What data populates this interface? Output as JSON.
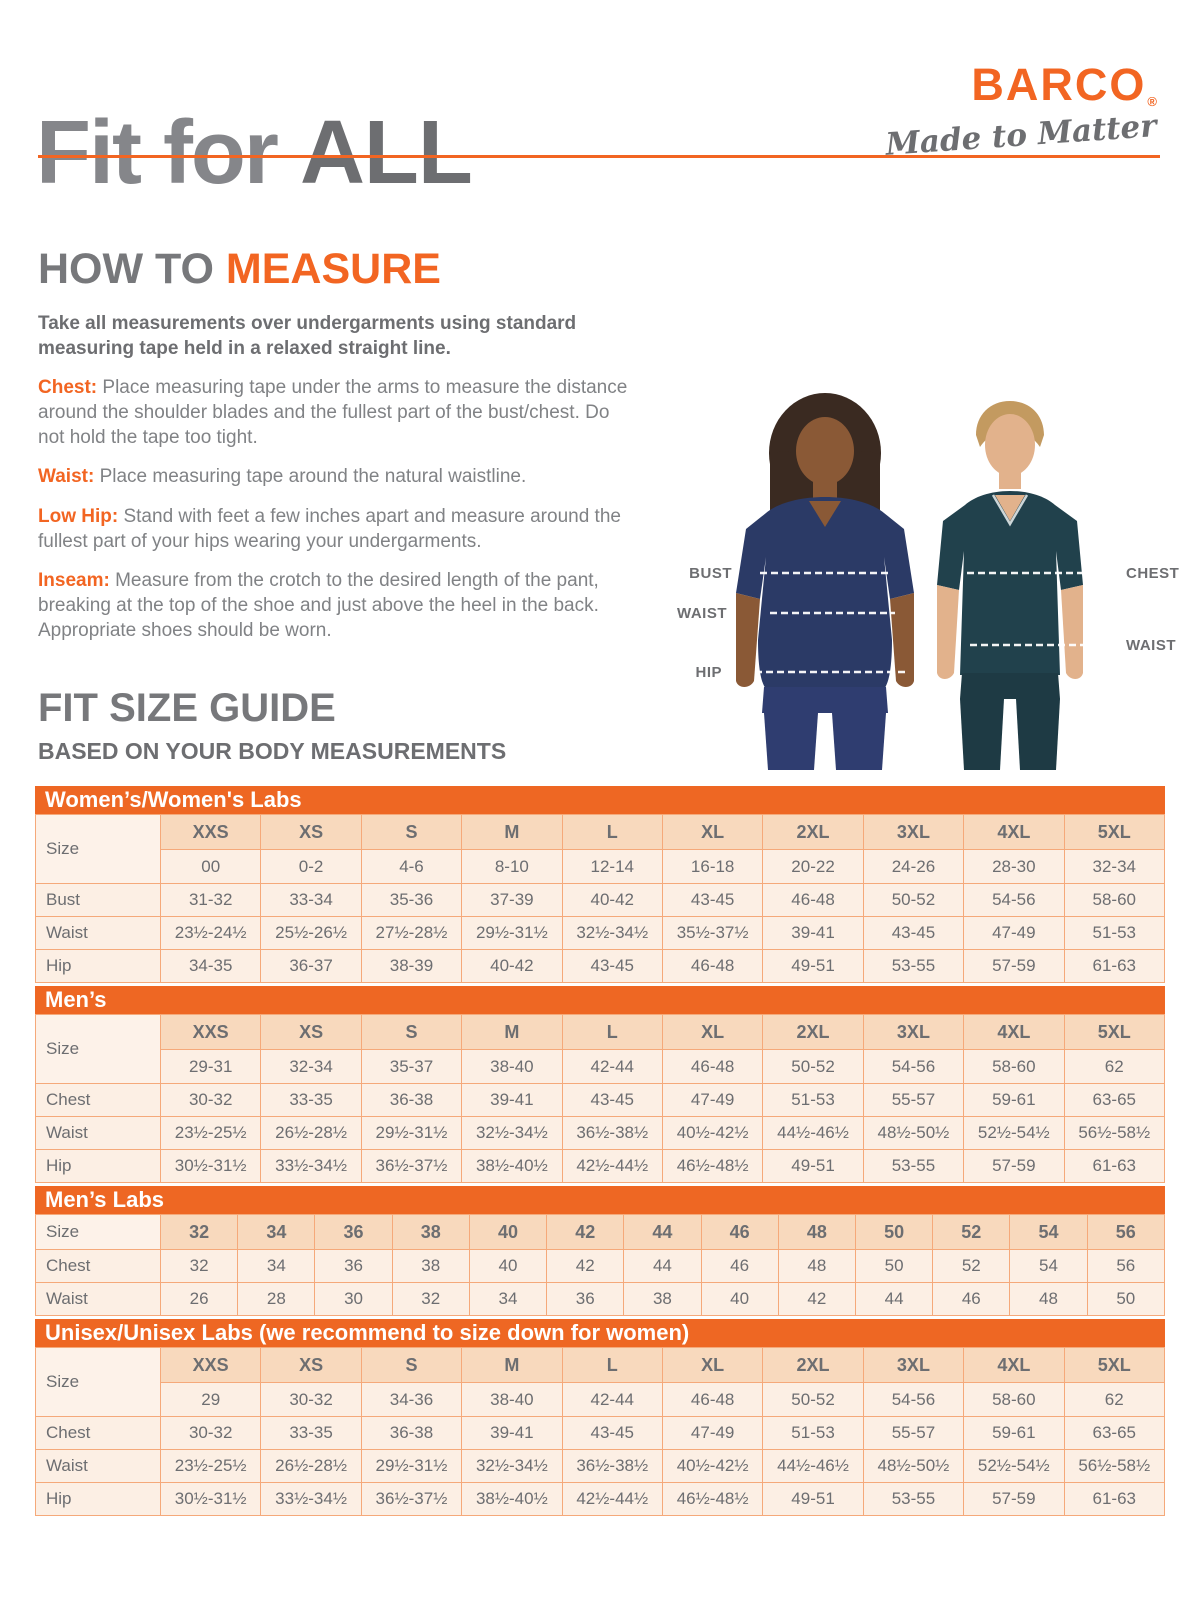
{
  "header": {
    "title_light": "Fit for ",
    "title_bold": "ALL",
    "logo": {
      "brand": "BARCO",
      "registered": "®",
      "tagline": "Made to Matter"
    }
  },
  "how_to_measure": {
    "heading_gray": "HOW TO ",
    "heading_orange": "MEASURE",
    "intro": "Take all measurements over undergarments using standard measuring tape held in a relaxed straight line.",
    "items": [
      {
        "label": "Chest:",
        "text": "Place measuring tape under the arms to measure the distance around the shoulder blades and the fullest part of the bust/chest. Do not hold the tape too tight."
      },
      {
        "label": "Waist:",
        "text": "Place measuring tape around the natural waistline."
      },
      {
        "label": "Low Hip:",
        "text": "Stand with feet a few inches apart and measure around the fullest part of your hips wearing your undergarments."
      },
      {
        "label": "Inseam:",
        "text": "Measure from the crotch to the desired length of the pant, breaking at the top of the shoe and just above the heel in the back. Appropriate shoes should be worn."
      }
    ]
  },
  "figure": {
    "labels": {
      "bust": "BUST",
      "waist_left": "WAIST",
      "hip": "HIP",
      "chest": "CHEST",
      "waist_right": "WAIST"
    },
    "colors": {
      "women_scrub": "#2b3a66",
      "men_scrub": "#21414c"
    }
  },
  "size_guide": {
    "heading": "FIT SIZE GUIDE",
    "subheading": "BASED ON YOUR BODY MEASUREMENTS",
    "tables": [
      {
        "id": "womens",
        "banner": "Women’s/Women's Labs",
        "size_row": {
          "label": "Size",
          "sizes": [
            "XXS",
            "XS",
            "S",
            "M",
            "L",
            "XL",
            "2XL",
            "3XL",
            "4XL",
            "5XL"
          ],
          "numeric": [
            "00",
            "0-2",
            "4-6",
            "8-10",
            "12-14",
            "16-18",
            "20-22",
            "24-26",
            "28-30",
            "32-34"
          ]
        },
        "rows": [
          {
            "label": "Bust",
            "values": [
              "31-32",
              "33-34",
              "35-36",
              "37-39",
              "40-42",
              "43-45",
              "46-48",
              "50-52",
              "54-56",
              "58-60"
            ]
          },
          {
            "label": "Waist",
            "values": [
              "23½-24½",
              "25½-26½",
              "27½-28½",
              "29½-31½",
              "32½-34½",
              "35½-37½",
              "39-41",
              "43-45",
              "47-49",
              "51-53"
            ]
          },
          {
            "label": "Hip",
            "values": [
              "34-35",
              "36-37",
              "38-39",
              "40-42",
              "43-45",
              "46-48",
              "49-51",
              "53-55",
              "57-59",
              "61-63"
            ]
          }
        ]
      },
      {
        "id": "mens",
        "banner": "Men’s",
        "size_row": {
          "label": "Size",
          "sizes": [
            "XXS",
            "XS",
            "S",
            "M",
            "L",
            "XL",
            "2XL",
            "3XL",
            "4XL",
            "5XL"
          ],
          "numeric": [
            "29-31",
            "32-34",
            "35-37",
            "38-40",
            "42-44",
            "46-48",
            "50-52",
            "54-56",
            "58-60",
            "62"
          ]
        },
        "rows": [
          {
            "label": "Chest",
            "values": [
              "30-32",
              "33-35",
              "36-38",
              "39-41",
              "43-45",
              "47-49",
              "51-53",
              "55-57",
              "59-61",
              "63-65"
            ]
          },
          {
            "label": "Waist",
            "values": [
              "23½-25½",
              "26½-28½",
              "29½-31½",
              "32½-34½",
              "36½-38½",
              "40½-42½",
              "44½-46½",
              "48½-50½",
              "52½-54½",
              "56½-58½"
            ]
          },
          {
            "label": "Hip",
            "values": [
              "30½-31½",
              "33½-34½",
              "36½-37½",
              "38½-40½",
              "42½-44½",
              "46½-48½",
              "49-51",
              "53-55",
              "57-59",
              "61-63"
            ]
          }
        ]
      },
      {
        "id": "mens-labs",
        "banner": "Men’s Labs",
        "size_row": {
          "label": "Size",
          "sizes": [
            "32",
            "34",
            "36",
            "38",
            "40",
            "42",
            "44",
            "46",
            "48",
            "50",
            "52",
            "54",
            "56"
          ]
        },
        "rows": [
          {
            "label": "Chest",
            "values": [
              "32",
              "34",
              "36",
              "38",
              "40",
              "42",
              "44",
              "46",
              "48",
              "50",
              "52",
              "54",
              "56"
            ]
          },
          {
            "label": "Waist",
            "values": [
              "26",
              "28",
              "30",
              "32",
              "34",
              "36",
              "38",
              "40",
              "42",
              "44",
              "46",
              "48",
              "50"
            ]
          }
        ]
      },
      {
        "id": "unisex",
        "banner": "Unisex/Unisex Labs (we recommend to size down for women)",
        "size_row": {
          "label": "Size",
          "sizes": [
            "XXS",
            "XS",
            "S",
            "M",
            "L",
            "XL",
            "2XL",
            "3XL",
            "4XL",
            "5XL"
          ],
          "numeric": [
            "29",
            "30-32",
            "34-36",
            "38-40",
            "42-44",
            "46-48",
            "50-52",
            "54-56",
            "58-60",
            "62"
          ]
        },
        "rows": [
          {
            "label": "Chest",
            "values": [
              "30-32",
              "33-35",
              "36-38",
              "39-41",
              "43-45",
              "47-49",
              "51-53",
              "55-57",
              "59-61",
              "63-65"
            ]
          },
          {
            "label": "Waist",
            "values": [
              "23½-25½",
              "26½-28½",
              "29½-31½",
              "32½-34½",
              "36½-38½",
              "40½-42½",
              "44½-46½",
              "48½-50½",
              "52½-54½",
              "56½-58½"
            ]
          },
          {
            "label": "Hip",
            "values": [
              "30½-31½",
              "33½-34½",
              "36½-37½",
              "38½-40½",
              "42½-44½",
              "46½-48½",
              "49-51",
              "53-55",
              "57-59",
              "61-63"
            ]
          }
        ]
      }
    ]
  },
  "colors": {
    "accent_orange": "#f26522",
    "banner_orange": "#ee6723",
    "table_border": "#f5a97a",
    "size_header_bg": "#f8d9bd",
    "cell_bg": "#fcefe4",
    "text_gray": "#6d6e71"
  }
}
